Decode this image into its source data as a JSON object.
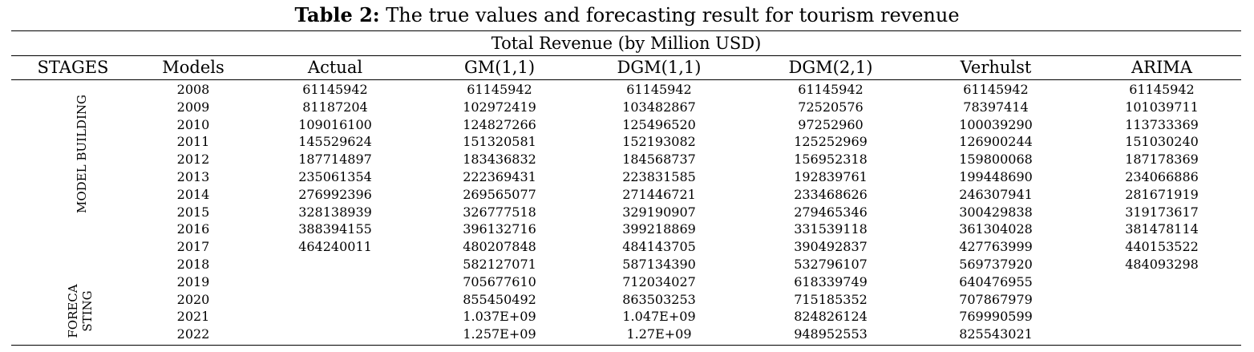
{
  "caption": {
    "label": "Table 2:",
    "text": " The true values and forecasting result for tourism revenue"
  },
  "table": {
    "group_header": "Total Revenue (by Million USD)",
    "columns": [
      "STAGES",
      "Models",
      "Actual",
      "GM(1,1)",
      "DGM(1,1)",
      "DGM(2,1)",
      "Verhulst",
      "ARIMA"
    ],
    "stages": {
      "model_building": "MODEL BUILDING",
      "forecasting_line1": "FORECA",
      "forecasting_line2": "STING"
    },
    "rows": [
      [
        "2008",
        "61145942",
        "61145942",
        "61145942",
        "61145942",
        "61145942",
        "61145942"
      ],
      [
        "2009",
        "81187204",
        "102972419",
        "103482867",
        "72520576",
        "78397414",
        "101039711"
      ],
      [
        "2010",
        "109016100",
        "124827266",
        "125496520",
        "97252960",
        "100039290",
        "113733369"
      ],
      [
        "2011",
        "145529624",
        "151320581",
        "152193082",
        "125252969",
        "126900244",
        "151030240"
      ],
      [
        "2012",
        "187714897",
        "183436832",
        "184568737",
        "156952318",
        "159800068",
        "187178369"
      ],
      [
        "2013",
        "235061354",
        "222369431",
        "223831585",
        "192839761",
        "199448690",
        "234066886"
      ],
      [
        "2014",
        "276992396",
        "269565077",
        "271446721",
        "233468626",
        "246307941",
        "281671919"
      ],
      [
        "2015",
        "328138939",
        "326777518",
        "329190907",
        "279465346",
        "300429838",
        "319173617"
      ],
      [
        "2016",
        "388394155",
        "396132716",
        "399218869",
        "331539118",
        "361304028",
        "381478114"
      ],
      [
        "2017",
        "464240011",
        "480207848",
        "484143705",
        "390492837",
        "427763999",
        "440153522"
      ],
      [
        "2018",
        "",
        "582127071",
        "587134390",
        "532796107",
        "569737920",
        "484093298"
      ],
      [
        "2019",
        "",
        "705677610",
        "712034027",
        "618339749",
        "640476955",
        ""
      ],
      [
        "2020",
        "",
        "855450492",
        "863503253",
        "715185352",
        "707867979",
        ""
      ],
      [
        "2021",
        "",
        "1.037E+09",
        "1.047E+09",
        "824826124",
        "769990599",
        ""
      ],
      [
        "2022",
        "",
        "1.257E+09",
        "1.27E+09",
        "948952553",
        "825543021",
        ""
      ]
    ]
  }
}
